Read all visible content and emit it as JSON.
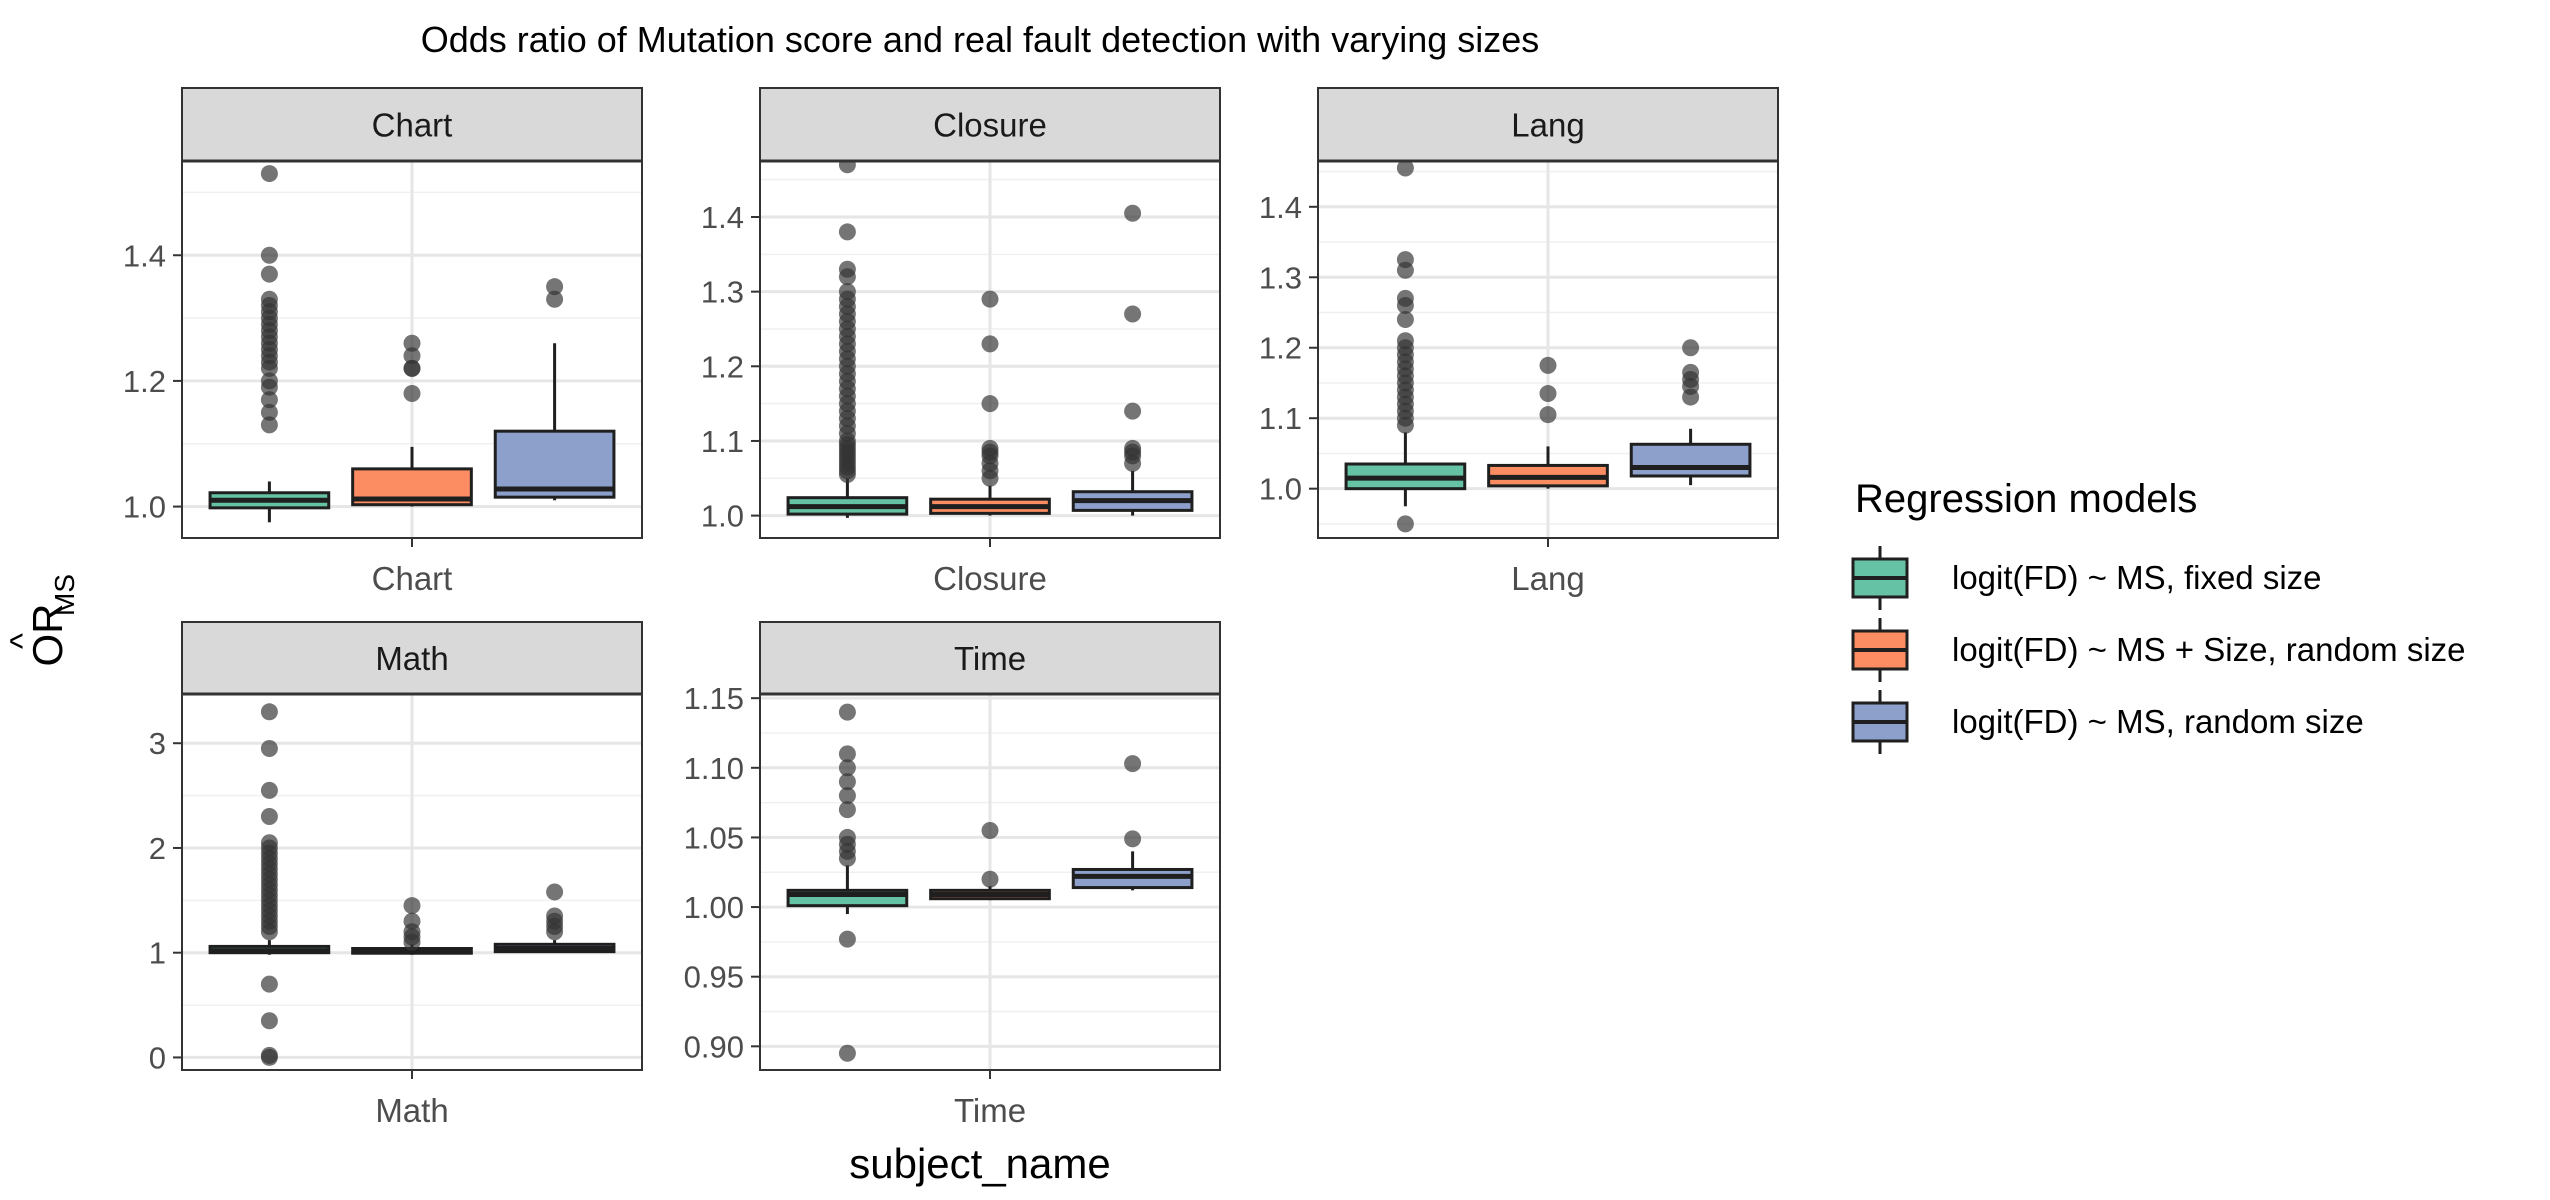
{
  "chart_data": {
    "type": "box",
    "title": "Odds ratio of Mutation score and real fault detection with varying sizes",
    "xlabel": "subject_name",
    "ylabel": "OR",
    "ylabel_subscript": "MS",
    "legend": {
      "title": "Regression models",
      "position": "right",
      "items": [
        {
          "label": "logit(FD) ~ MS, fixed size",
          "color": "#66C2A5"
        },
        {
          "label": "logit(FD) ~ MS + Size, random size",
          "color": "#FC8D62"
        },
        {
          "label": "logit(FD) ~ MS, random size",
          "color": "#8DA0CB"
        }
      ]
    },
    "grid": true,
    "panels": [
      {
        "strip": "Chart",
        "category": "Chart",
        "ylim": [
          0.95,
          1.55
        ],
        "yticks": [
          1.0,
          1.2,
          1.4
        ],
        "ytick_labels": [
          "1.0",
          "1.2",
          "1.4"
        ],
        "boxes": [
          {
            "series": 0,
            "min": 0.975,
            "q1": 0.998,
            "median": 1.01,
            "q3": 1.022,
            "max": 1.04,
            "outliers": [
              1.53,
              1.4,
              1.37,
              1.33,
              1.32,
              1.31,
              1.3,
              1.29,
              1.28,
              1.27,
              1.26,
              1.25,
              1.24,
              1.23,
              1.22,
              1.2,
              1.19,
              1.17,
              1.15,
              1.13
            ]
          },
          {
            "series": 1,
            "min": 1.0,
            "q1": 1.003,
            "median": 1.012,
            "q3": 1.06,
            "max": 1.095,
            "outliers": [
              1.26,
              1.24,
              1.22,
              1.22,
              1.18
            ]
          },
          {
            "series": 2,
            "min": 1.01,
            "q1": 1.015,
            "median": 1.028,
            "q3": 1.12,
            "max": 1.26,
            "outliers": [
              1.35,
              1.33
            ]
          }
        ]
      },
      {
        "strip": "Closure",
        "category": "Closure",
        "ylim": [
          0.97,
          1.475
        ],
        "yticks": [
          1.0,
          1.1,
          1.2,
          1.3,
          1.4
        ],
        "ytick_labels": [
          "1.0",
          "1.1",
          "1.2",
          "1.3",
          "1.4"
        ],
        "boxes": [
          {
            "series": 0,
            "min": 0.997,
            "q1": 1.002,
            "median": 1.012,
            "q3": 1.024,
            "max": 1.05,
            "outliers": [
              1.47,
              1.38,
              1.33,
              1.32,
              1.3,
              1.29,
              1.28,
              1.27,
              1.26,
              1.25,
              1.24,
              1.23,
              1.22,
              1.21,
              1.2,
              1.19,
              1.18,
              1.17,
              1.16,
              1.15,
              1.14,
              1.13,
              1.12,
              1.11,
              1.1,
              1.095,
              1.09,
              1.085,
              1.08,
              1.075,
              1.07,
              1.065,
              1.06,
              1.055
            ]
          },
          {
            "series": 1,
            "min": 1.0,
            "q1": 1.003,
            "median": 1.012,
            "q3": 1.022,
            "max": 1.04,
            "outliers": [
              1.29,
              1.23,
              1.15,
              1.09,
              1.085,
              1.08,
              1.07,
              1.06,
              1.05
            ]
          },
          {
            "series": 2,
            "min": 1.0,
            "q1": 1.007,
            "median": 1.02,
            "q3": 1.032,
            "max": 1.06,
            "outliers": [
              1.405,
              1.27,
              1.14,
              1.09,
              1.085,
              1.08,
              1.07
            ]
          }
        ]
      },
      {
        "strip": "Lang",
        "category": "Lang",
        "ylim": [
          0.93,
          1.465
        ],
        "yticks": [
          1.0,
          1.1,
          1.2,
          1.3,
          1.4
        ],
        "ytick_labels": [
          "1.0",
          "1.1",
          "1.2",
          "1.3",
          "1.4"
        ],
        "boxes": [
          {
            "series": 0,
            "min": 0.975,
            "q1": 1.0,
            "median": 1.015,
            "q3": 1.035,
            "max": 1.08,
            "outliers": [
              1.455,
              1.325,
              1.31,
              1.27,
              1.26,
              1.24,
              1.21,
              1.2,
              1.19,
              1.18,
              1.17,
              1.16,
              1.15,
              1.14,
              1.13,
              1.12,
              1.11,
              1.1,
              1.09,
              0.95
            ]
          },
          {
            "series": 1,
            "min": 1.0,
            "q1": 1.004,
            "median": 1.016,
            "q3": 1.033,
            "max": 1.06,
            "outliers": [
              1.175,
              1.135,
              1.105
            ]
          },
          {
            "series": 2,
            "min": 1.005,
            "q1": 1.018,
            "median": 1.03,
            "q3": 1.063,
            "max": 1.085,
            "outliers": [
              1.2,
              1.165,
              1.155,
              1.145,
              1.13
            ]
          }
        ]
      },
      {
        "strip": "Math",
        "category": "Math",
        "ylim": [
          -0.12,
          3.47
        ],
        "yticks": [
          0,
          1,
          2,
          3
        ],
        "ytick_labels": [
          "0",
          "1",
          "2",
          "3"
        ],
        "boxes": [
          {
            "series": 0,
            "min": 0.98,
            "q1": 1.0,
            "median": 1.02,
            "q3": 1.06,
            "max": 1.12,
            "outliers": [
              3.3,
              2.95,
              2.55,
              2.3,
              2.05,
              2.0,
              1.95,
              1.9,
              1.85,
              1.8,
              1.75,
              1.7,
              1.65,
              1.6,
              1.55,
              1.5,
              1.45,
              1.4,
              1.35,
              1.3,
              1.25,
              1.2,
              0.7,
              0.35,
              0.02,
              0.0
            ]
          },
          {
            "series": 1,
            "min": 0.98,
            "q1": 0.995,
            "median": 1.01,
            "q3": 1.04,
            "max": 1.08,
            "outliers": [
              1.45,
              1.3,
              1.2,
              1.15,
              1.1
            ]
          },
          {
            "series": 2,
            "min": 1.0,
            "q1": 1.01,
            "median": 1.04,
            "q3": 1.08,
            "max": 1.12,
            "outliers": [
              1.58,
              1.35,
              1.3,
              1.25,
              1.2
            ]
          }
        ]
      },
      {
        "strip": "Time",
        "category": "Time",
        "ylim": [
          0.883,
          1.153
        ],
        "yticks": [
          0.9,
          0.95,
          1.0,
          1.05,
          1.1,
          1.15
        ],
        "ytick_labels": [
          "0.90",
          "0.95",
          "1.00",
          "1.05",
          "1.10",
          "1.15"
        ],
        "boxes": [
          {
            "series": 0,
            "min": 0.995,
            "q1": 1.001,
            "median": 1.009,
            "q3": 1.012,
            "max": 1.03,
            "outliers": [
              1.14,
              1.11,
              1.1,
              1.09,
              1.08,
              1.07,
              1.05,
              1.045,
              1.04,
              1.035,
              0.977,
              0.895
            ]
          },
          {
            "series": 1,
            "min": 1.005,
            "q1": 1.006,
            "median": 1.009,
            "q3": 1.012,
            "max": 1.015,
            "outliers": [
              1.055,
              1.02
            ]
          },
          {
            "series": 2,
            "min": 1.012,
            "q1": 1.014,
            "median": 1.022,
            "q3": 1.027,
            "max": 1.04,
            "outliers": [
              1.103,
              1.049
            ]
          }
        ]
      }
    ]
  }
}
